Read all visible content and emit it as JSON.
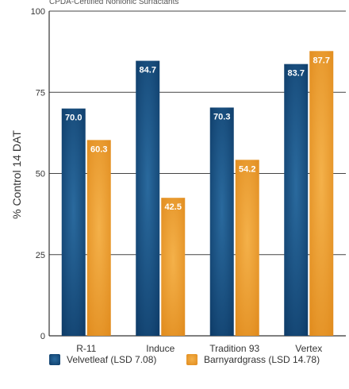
{
  "chart_data": {
    "type": "bar",
    "title": "CPDA-Certified Nonionic Surfactants",
    "ylabel": "% Control 14 DAT",
    "xlabel": "",
    "ylim": [
      0,
      100
    ],
    "yticks": [
      "0",
      "25",
      "50",
      "75",
      "100"
    ],
    "grid": true,
    "legend_position": "bottom",
    "categories": [
      "R-11",
      "Induce",
      "Tradition 93",
      "Vertex"
    ],
    "series": [
      {
        "name": "Velvetleaf (LSD 7.08)",
        "values": [
          70.0,
          84.7,
          70.3,
          83.7
        ],
        "labels": [
          "70.0",
          "84.7",
          "70.3",
          "83.7"
        ],
        "color_light": "#2a6a9e",
        "color_dark": "#0d3a66"
      },
      {
        "name": "Barnyardgrass (LSD 14.78)",
        "values": [
          60.3,
          42.5,
          54.2,
          87.7
        ],
        "labels": [
          "60.3",
          "42.5",
          "54.2",
          "87.7"
        ],
        "color_light": "#f4b14a",
        "color_dark": "#e08a1c"
      }
    ]
  }
}
